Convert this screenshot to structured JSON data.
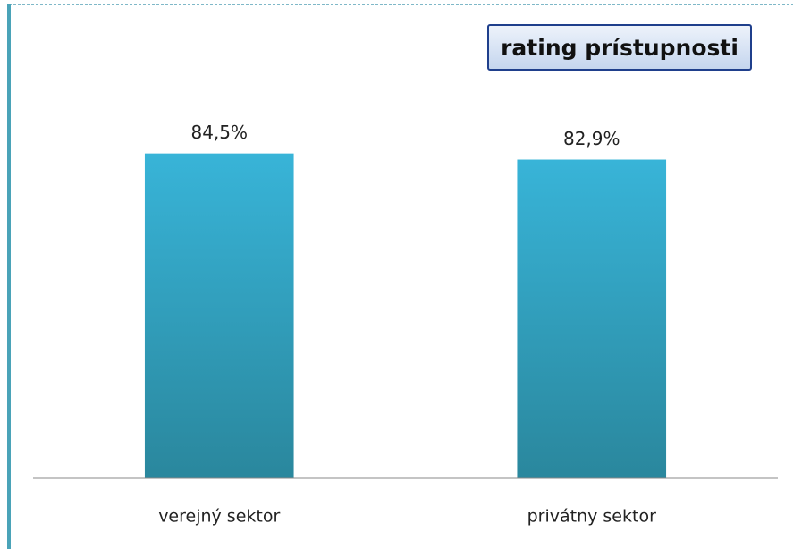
{
  "chart_data": {
    "type": "bar",
    "title": "rating prístupnosti",
    "categories": [
      "verejný sektor",
      "privátny sektor"
    ],
    "values": [
      84.5,
      82.9
    ],
    "value_labels": [
      "84,5%",
      "82,9%"
    ],
    "color": "#38b4d8",
    "ylim": [
      0,
      100
    ]
  }
}
